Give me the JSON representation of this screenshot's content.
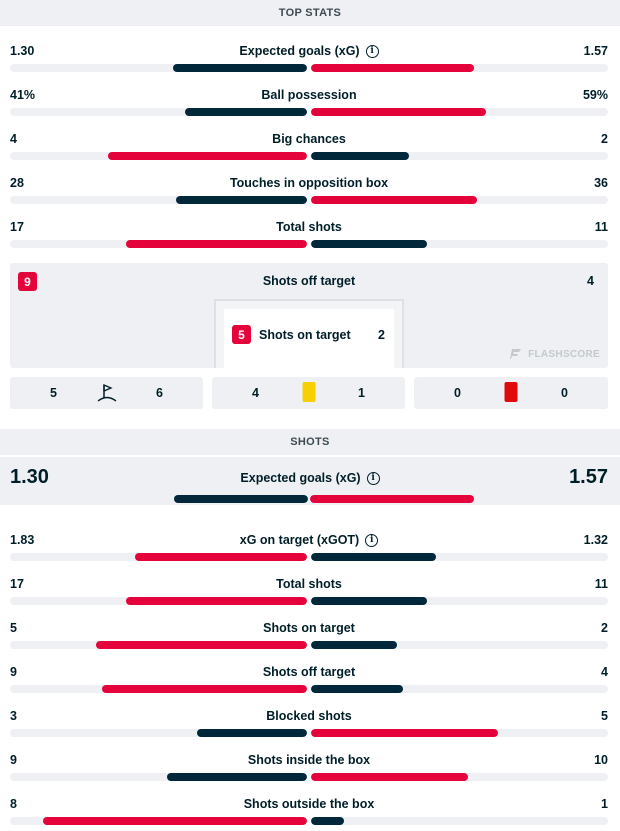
{
  "top_stats": {
    "header": "TOP STATS",
    "rows": [
      {
        "label": "Expected goals (xG)",
        "home": "1.30",
        "away": "1.57",
        "home_pct": 45,
        "away_pct": 55,
        "winner": "away",
        "info": true
      },
      {
        "label": "Ball possession",
        "home": "41%",
        "away": "59%",
        "home_pct": 41,
        "away_pct": 59,
        "winner": "away",
        "info": false
      },
      {
        "label": "Big chances",
        "home": "4",
        "away": "2",
        "home_pct": 67,
        "away_pct": 33,
        "winner": "home",
        "info": false
      },
      {
        "label": "Touches in opposition box",
        "home": "28",
        "away": "36",
        "home_pct": 44,
        "away_pct": 56,
        "winner": "away",
        "info": false
      },
      {
        "label": "Total shots",
        "home": "17",
        "away": "11",
        "home_pct": 61,
        "away_pct": 39,
        "winner": "home",
        "info": false
      }
    ],
    "shots_box": {
      "off_label": "Shots off target",
      "off_home": "9",
      "off_away": "4",
      "on_label": "Shots on target",
      "on_home": "5",
      "on_away": "2",
      "watermark": "FLASHSCORE"
    },
    "mini": [
      {
        "icon": "corner-flag-icon",
        "home": "5",
        "away": "6"
      },
      {
        "icon": "yellow-card-icon",
        "home": "4",
        "away": "1"
      },
      {
        "icon": "red-card-icon",
        "home": "0",
        "away": "0"
      }
    ]
  },
  "shots": {
    "header": "SHOTS",
    "highlight": {
      "label": "Expected goals (xG)",
      "home": "1.30",
      "away": "1.57",
      "home_pct": 45,
      "away_pct": 55,
      "winner": "away",
      "info": true
    },
    "rows": [
      {
        "label": "xG on target (xGOT)",
        "home": "1.83",
        "away": "1.32",
        "home_pct": 58,
        "away_pct": 42,
        "winner": "home",
        "info": true
      },
      {
        "label": "Total shots",
        "home": "17",
        "away": "11",
        "home_pct": 61,
        "away_pct": 39,
        "winner": "home",
        "info": false
      },
      {
        "label": "Shots on target",
        "home": "5",
        "away": "2",
        "home_pct": 71,
        "away_pct": 29,
        "winner": "home",
        "info": false
      },
      {
        "label": "Shots off target",
        "home": "9",
        "away": "4",
        "home_pct": 69,
        "away_pct": 31,
        "winner": "home",
        "info": false
      },
      {
        "label": "Blocked shots",
        "home": "3",
        "away": "5",
        "home_pct": 37,
        "away_pct": 63,
        "winner": "away",
        "info": false
      },
      {
        "label": "Shots inside the box",
        "home": "9",
        "away": "10",
        "home_pct": 47,
        "away_pct": 53,
        "winner": "away",
        "info": false
      },
      {
        "label": "Shots outside the box",
        "home": "8",
        "away": "1",
        "home_pct": 89,
        "away_pct": 11,
        "winner": "home",
        "info": false
      }
    ]
  },
  "colors": {
    "win": "#e4033b",
    "lose": "#00283a",
    "track": "#eef0f3"
  }
}
